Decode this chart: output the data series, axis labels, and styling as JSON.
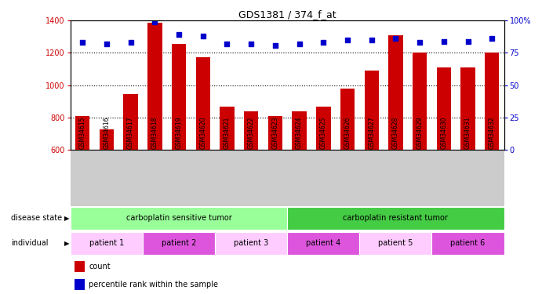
{
  "title": "GDS1381 / 374_f_at",
  "samples": [
    "GSM34615",
    "GSM34616",
    "GSM34617",
    "GSM34618",
    "GSM34619",
    "GSM34620",
    "GSM34621",
    "GSM34622",
    "GSM34623",
    "GSM34624",
    "GSM34625",
    "GSM34626",
    "GSM34627",
    "GSM34628",
    "GSM34629",
    "GSM34630",
    "GSM34631",
    "GSM34632"
  ],
  "counts": [
    810,
    725,
    945,
    1385,
    1255,
    1175,
    870,
    840,
    810,
    840,
    870,
    980,
    1090,
    1310,
    1200,
    1110,
    1110,
    1200
  ],
  "percentile_ranks": [
    83,
    82,
    83,
    99,
    89,
    88,
    82,
    82,
    81,
    82,
    83,
    85,
    85,
    86,
    83,
    84,
    84,
    86
  ],
  "ylim_left": [
    600,
    1400
  ],
  "ylim_right": [
    0,
    100
  ],
  "yticks_left": [
    600,
    800,
    1000,
    1200,
    1400
  ],
  "yticks_right": [
    0,
    25,
    50,
    75,
    100
  ],
  "bar_color": "#cc0000",
  "dot_color": "#0000cc",
  "background_color": "#ffffff",
  "xticklabel_bg": "#cccccc",
  "disease_sensitive_color": "#99ff99",
  "disease_resistant_color": "#44cc44",
  "patient_colors_alt": [
    "#ffccff",
    "#dd55dd"
  ],
  "patients": [
    {
      "label": "patient 1",
      "start": 0,
      "end": 3,
      "color_idx": 0
    },
    {
      "label": "patient 2",
      "start": 3,
      "end": 6,
      "color_idx": 1
    },
    {
      "label": "patient 3",
      "start": 6,
      "end": 9,
      "color_idx": 0
    },
    {
      "label": "patient 4",
      "start": 9,
      "end": 12,
      "color_idx": 1
    },
    {
      "label": "patient 5",
      "start": 12,
      "end": 15,
      "color_idx": 0
    },
    {
      "label": "patient 6",
      "start": 15,
      "end": 18,
      "color_idx": 1
    }
  ],
  "disease_groups": [
    {
      "label": "carboplatin sensitive tumor",
      "start": 0,
      "end": 9,
      "color": "#99ff99"
    },
    {
      "label": "carboplatin resistant tumor",
      "start": 9,
      "end": 18,
      "color": "#44cc44"
    }
  ],
  "n_samples": 18,
  "bar_width": 0.6
}
